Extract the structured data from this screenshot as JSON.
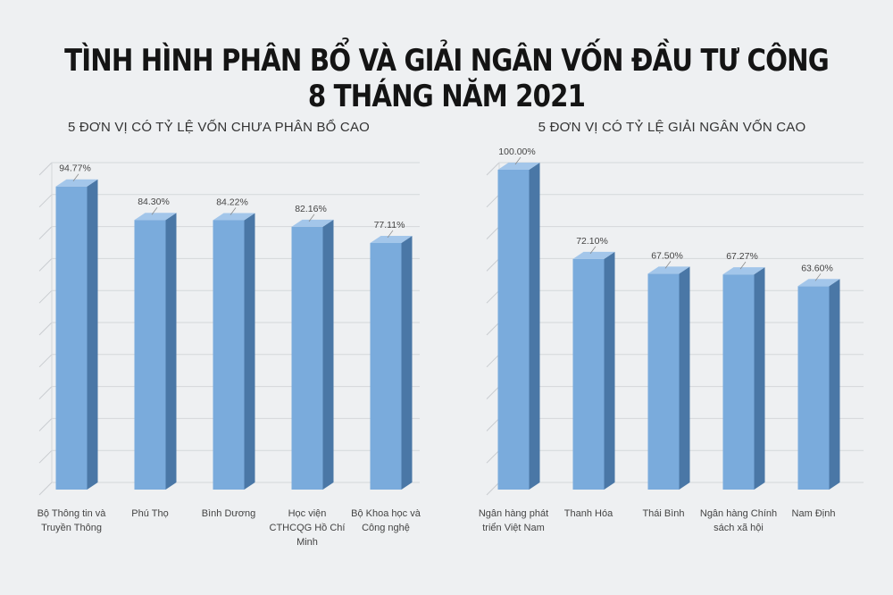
{
  "title": "TÌNH HÌNH PHÂN BỔ VÀ GIẢI NGÂN VỐN ĐẦU TƯ CÔNG 8 THÁNG NĂM 2021",
  "chart_data": [
    {
      "type": "bar",
      "title": "5 ĐƠN VỊ CÓ TỶ LỆ VỐN CHƯA PHÂN BỔ CAO",
      "categories": [
        [
          "Bộ Thông tin và",
          "Truyền Thông"
        ],
        [
          "Phú Thọ"
        ],
        [
          "Bình Dương"
        ],
        [
          "Học viện",
          "CTHCQG Hồ Chí",
          "Minh"
        ],
        [
          "Bộ Khoa học và",
          "Công nghệ"
        ]
      ],
      "values": [
        94.77,
        84.3,
        84.22,
        82.16,
        77.11
      ],
      "value_labels": [
        "94.77%",
        "84.30%",
        "84.22%",
        "82.16%",
        "77.11%"
      ],
      "unit": "%",
      "ylim": [
        0,
        100
      ],
      "grid": true,
      "style": "3d",
      "bar_color": "#7aabdc",
      "bar_side_color": "#4a77a6",
      "bar_top_color": "#a3c6ea"
    },
    {
      "type": "bar",
      "title": "5 ĐƠN VỊ CÓ TỶ LỆ GIẢI NGÂN VỐN CAO",
      "categories": [
        [
          "Ngân hàng phát",
          "triển Việt Nam"
        ],
        [
          "Thanh Hóa"
        ],
        [
          "Thái Bình"
        ],
        [
          "Ngân hàng Chính",
          "sách xã hội"
        ],
        [
          "Nam Định"
        ]
      ],
      "values": [
        100.0,
        72.1,
        67.5,
        67.27,
        63.6
      ],
      "value_labels": [
        "100.00%",
        "72.10%",
        "67.50%",
        "67.27%",
        "63.60%"
      ],
      "unit": "%",
      "ylim": [
        0,
        100
      ],
      "grid": true,
      "style": "3d",
      "bar_color": "#7aabdc",
      "bar_side_color": "#4a77a6",
      "bar_top_color": "#a3c6ea"
    }
  ]
}
